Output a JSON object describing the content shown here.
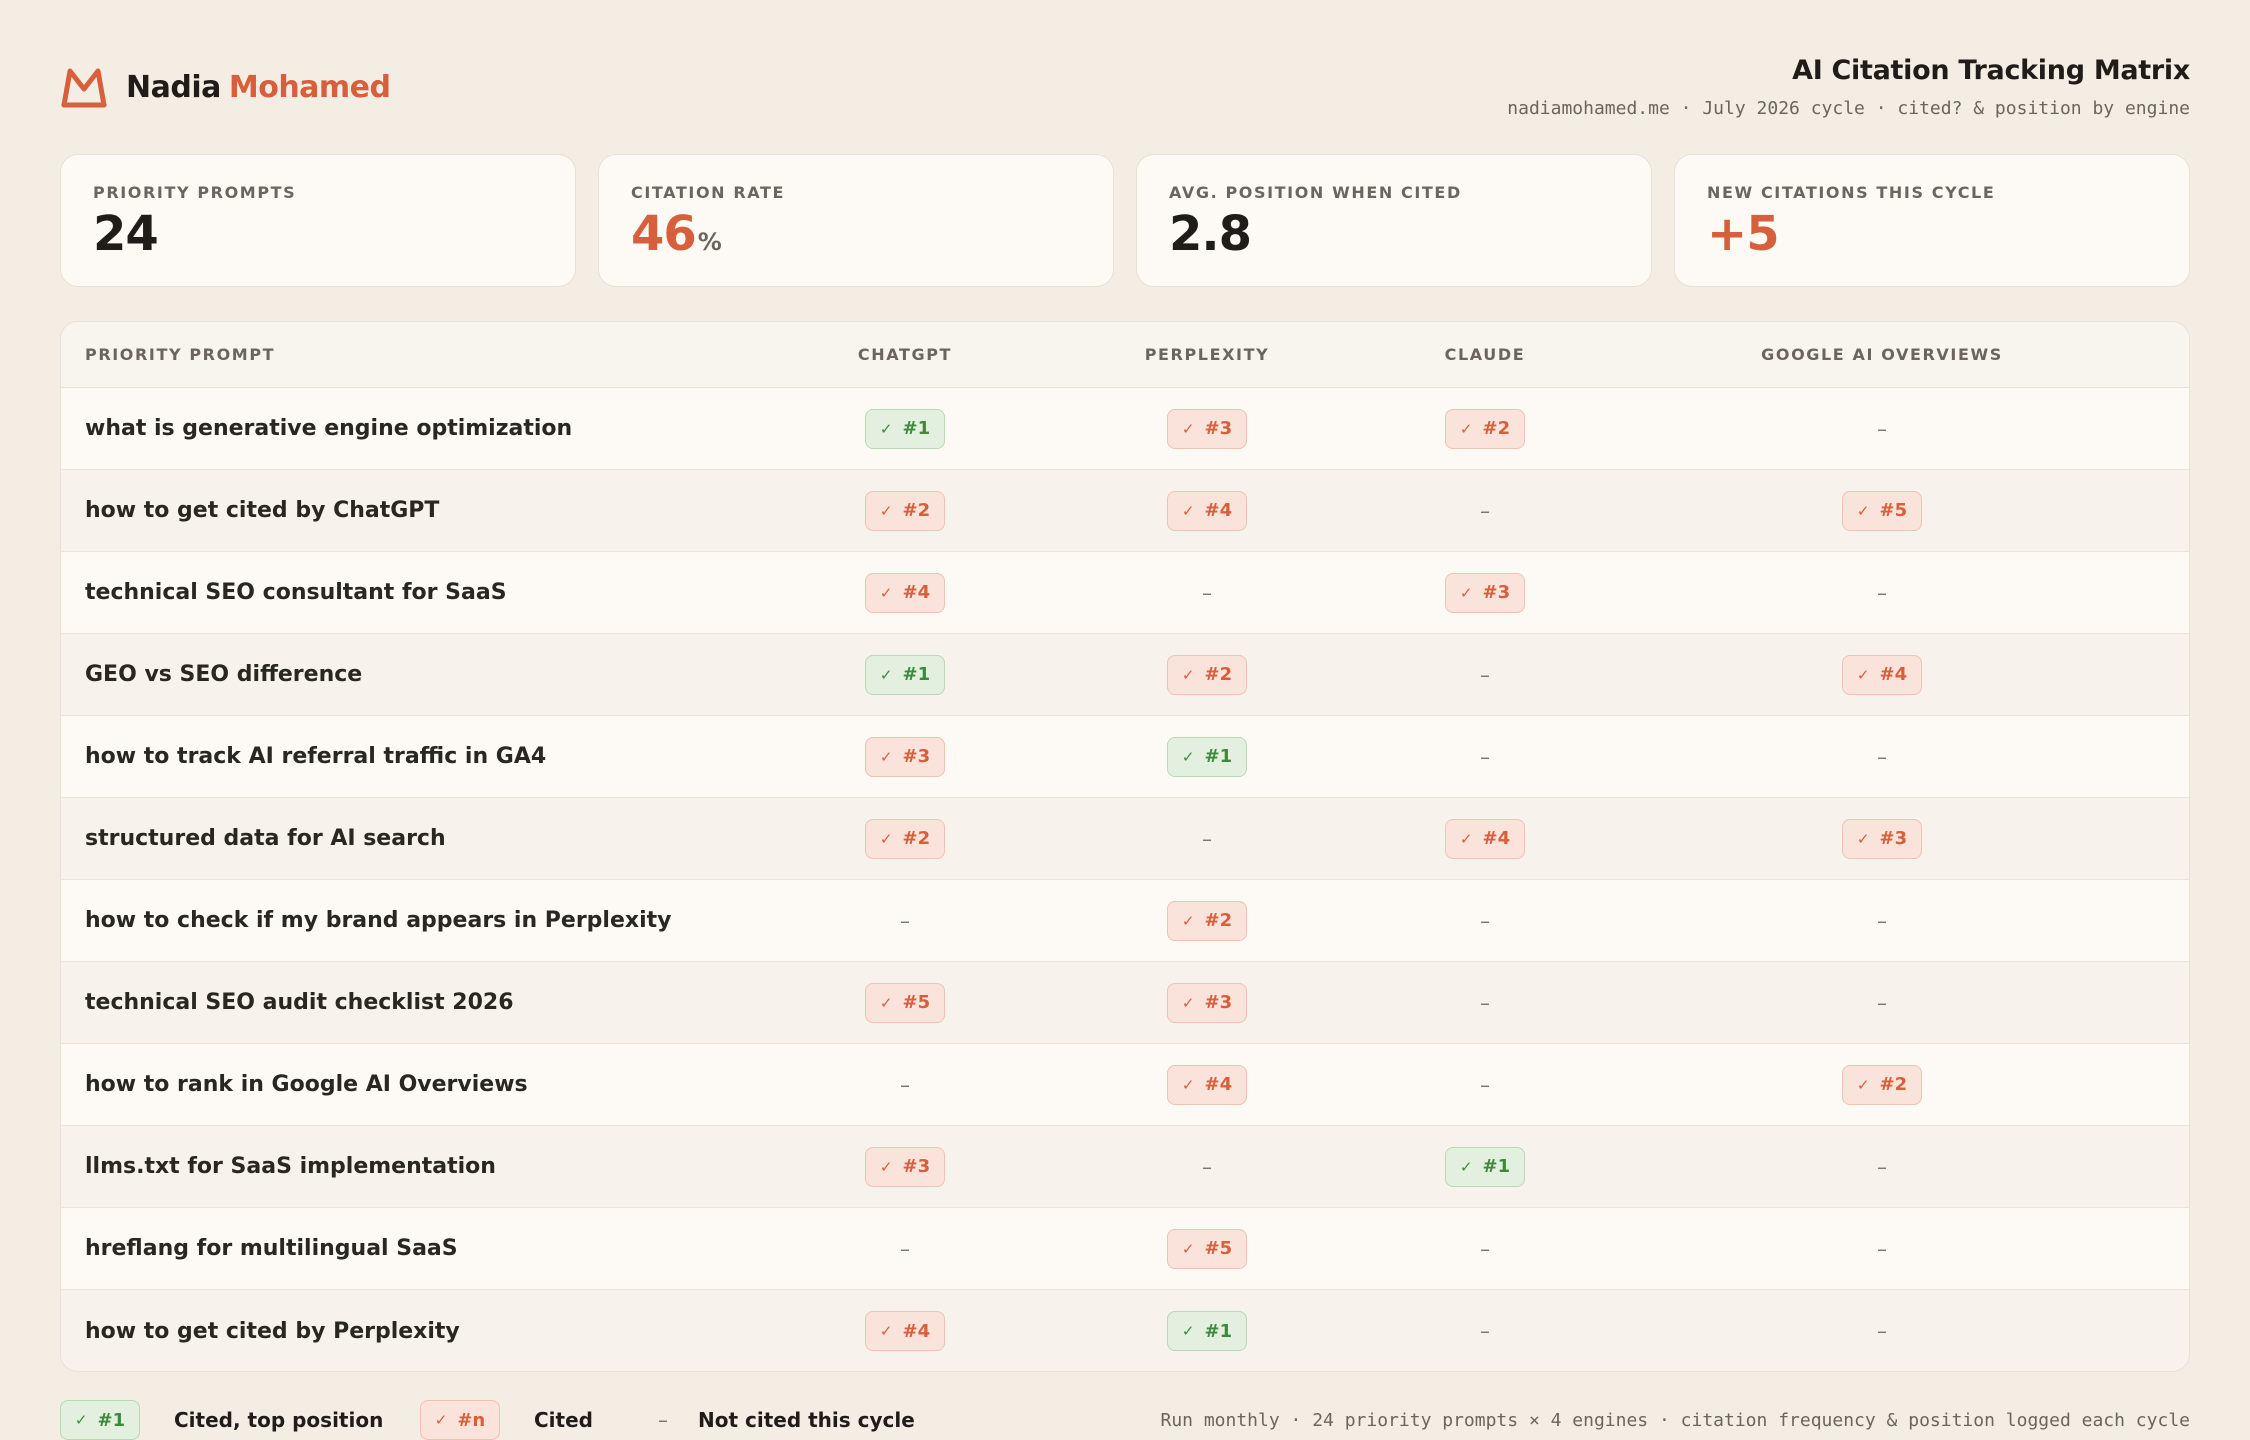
{
  "brand": {
    "first": "Nadia",
    "last": "Mohamed",
    "logo_icon": "m-logo-icon",
    "accent": "#d75f3c"
  },
  "header": {
    "title": "AI Citation Tracking Matrix",
    "subtitle": "nadiamohamed.me · July 2026 cycle · cited? & position by engine"
  },
  "stats": [
    {
      "label": "PRIORITY PROMPTS",
      "value": "24",
      "unit": ""
    },
    {
      "label": "CITATION RATE",
      "value": "46",
      "unit": "%"
    },
    {
      "label": "AVG. POSITION WHEN CITED",
      "value": "2.8",
      "unit": ""
    },
    {
      "label": "NEW CITATIONS THIS CYCLE",
      "value": "+5",
      "unit": ""
    }
  ],
  "table": {
    "headers": [
      "PRIORITY PROMPT",
      "CHATGPT",
      "PERPLEXITY",
      "CLAUDE",
      "GOOGLE AI OVERVIEWS"
    ],
    "rows": [
      {
        "prompt": "what is generative engine optimization",
        "cells": [
          "#1",
          "#3",
          "#2",
          "–"
        ]
      },
      {
        "prompt": "how to get cited by ChatGPT",
        "cells": [
          "#2",
          "#4",
          "–",
          "#5"
        ]
      },
      {
        "prompt": "technical SEO consultant for SaaS",
        "cells": [
          "#4",
          "–",
          "#3",
          "–"
        ]
      },
      {
        "prompt": "GEO vs SEO difference",
        "cells": [
          "#1",
          "#2",
          "–",
          "#4"
        ]
      },
      {
        "prompt": "how to track AI referral traffic in GA4",
        "cells": [
          "#3",
          "#1",
          "–",
          "–"
        ]
      },
      {
        "prompt": "structured data for AI search",
        "cells": [
          "#2",
          "–",
          "#4",
          "#3"
        ]
      },
      {
        "prompt": "how to check if my brand appears in Perplexity",
        "cells": [
          "–",
          "#2",
          "–",
          "–"
        ]
      },
      {
        "prompt": "technical SEO audit checklist 2026",
        "cells": [
          "#5",
          "#3",
          "–",
          "–"
        ]
      },
      {
        "prompt": "how to rank in Google AI Overviews",
        "cells": [
          "–",
          "#4",
          "–",
          "#2"
        ]
      },
      {
        "prompt": "llms.txt for SaaS implementation",
        "cells": [
          "#3",
          "–",
          "#1",
          "–"
        ]
      },
      {
        "prompt": "hreflang for multilingual SaaS",
        "cells": [
          "–",
          "#5",
          "–",
          "–"
        ]
      },
      {
        "prompt": "how to get cited by Perplexity",
        "cells": [
          "#4",
          "#1",
          "–",
          "–"
        ]
      }
    ]
  },
  "legend": {
    "top": {
      "pill": "#1",
      "label": "Cited, top position"
    },
    "cited": {
      "pill": "#n",
      "label": "Cited"
    },
    "none": {
      "mark": "–",
      "label": "Not cited this cycle"
    },
    "note": "Run monthly · 24 priority prompts × 4 engines · citation frequency & position logged each cycle"
  },
  "colors": {
    "top_green": "#3d8a3e",
    "cited_orange": "#d75f3c",
    "background": "#f3ede3"
  }
}
